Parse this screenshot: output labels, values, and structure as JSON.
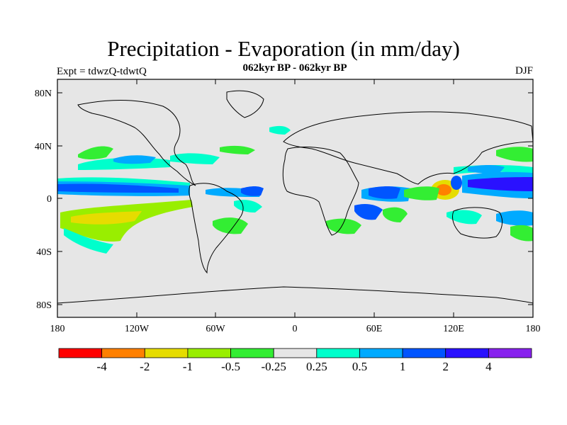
{
  "figure": {
    "title": "Precipitation - Evaporation (in mm/day)",
    "subtitle": "062kyr BP - 062kyr BP",
    "experiment_label": "Expt = tdwzQ-tdwtQ",
    "season": "DJF"
  },
  "map": {
    "background_color": "#e6e6e6",
    "lat_labels": [
      "80N",
      "40N",
      "0",
      "40S",
      "80S"
    ],
    "lon_labels": [
      "180",
      "120W",
      "60W",
      "0",
      "60E",
      "120E",
      "180"
    ]
  },
  "colorbar": {
    "colors": [
      "#ff0000",
      "#ff8000",
      "#e6dc00",
      "#99ee00",
      "#33ee33",
      "#e6e6e6",
      "#00ffcc",
      "#00aaff",
      "#0055ff",
      "#2a11ff",
      "#8822ee"
    ],
    "labels": [
      "-4",
      "-2",
      "-1",
      "-0.5",
      "-0.25",
      "0.25",
      "0.5",
      "1",
      "2",
      "4"
    ]
  }
}
